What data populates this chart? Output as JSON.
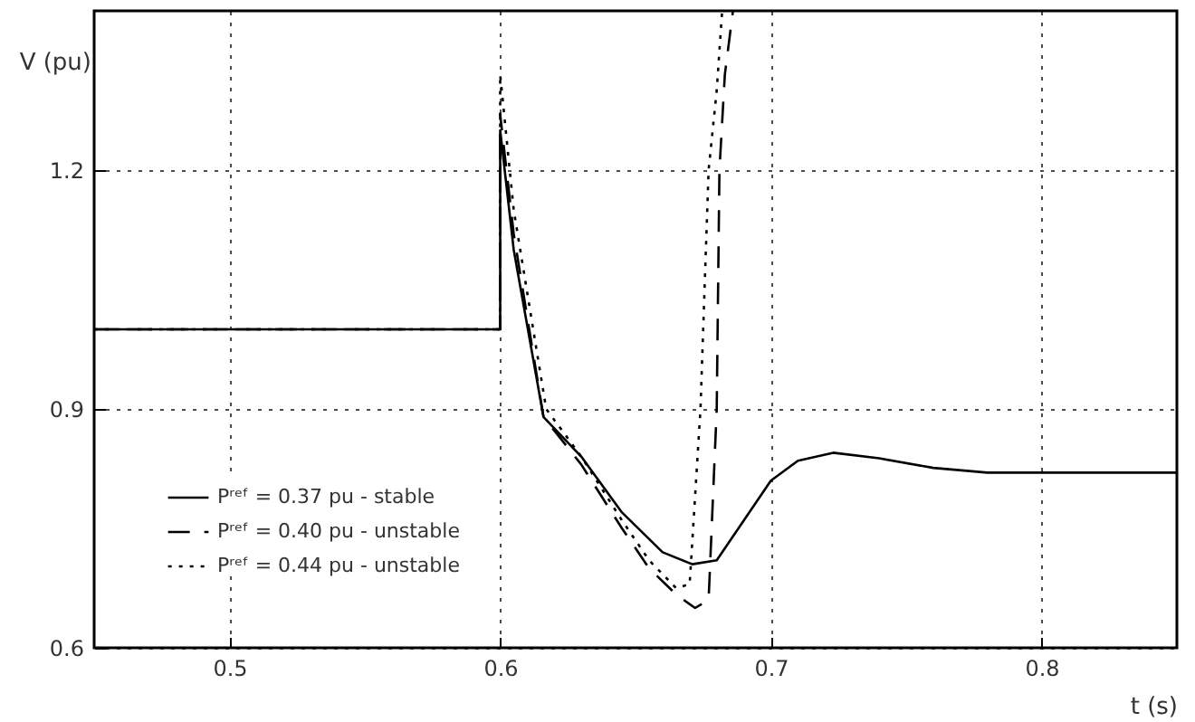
{
  "chart_data": {
    "type": "line",
    "xlabel": "t (s)",
    "ylabel": "V (pu)",
    "xlim": [
      0.45,
      0.85
    ],
    "ylim": [
      0.6,
      1.4
    ],
    "xticks": [
      0.5,
      0.6,
      0.7,
      0.8
    ],
    "yticks": [
      0.6,
      0.9,
      1.2
    ],
    "grid": true,
    "legend": "bottom left",
    "series": [
      {
        "name": "Pʳᵉᶠ = 0.37 pu - stable",
        "color": "#000000",
        "line_style": "solid",
        "x": [
          0.45,
          0.6,
          0.6,
          0.605,
          0.616,
          0.63,
          0.645,
          0.66,
          0.671,
          0.68,
          0.69,
          0.7,
          0.71,
          0.723,
          0.74,
          0.76,
          0.78,
          0.8,
          0.85
        ],
        "values": [
          1.0,
          1.0,
          1.25,
          1.1,
          0.89,
          0.84,
          0.77,
          0.72,
          0.705,
          0.71,
          0.76,
          0.81,
          0.835,
          0.845,
          0.838,
          0.826,
          0.82,
          0.82,
          0.82
        ]
      },
      {
        "name": "Pʳᵉᶠ = 0.40 pu - unstable",
        "color": "#000000",
        "line_style": "dashed",
        "x": [
          0.45,
          0.6,
          0.6,
          0.605,
          0.616,
          0.63,
          0.645,
          0.655,
          0.665,
          0.672,
          0.677,
          0.68,
          0.681,
          0.683,
          0.686
        ],
        "values": [
          1.0,
          1.0,
          1.27,
          1.12,
          0.89,
          0.83,
          0.75,
          0.7,
          0.667,
          0.65,
          0.66,
          0.9,
          1.2,
          1.32,
          1.4
        ]
      },
      {
        "name": "Pʳᵉᶠ = 0.44 pu - unstable",
        "color": "#000000",
        "line_style": "dotted",
        "x": [
          0.45,
          0.6,
          0.6,
          0.605,
          0.617,
          0.63,
          0.645,
          0.655,
          0.665,
          0.67,
          0.674,
          0.677,
          0.68,
          0.682
        ],
        "values": [
          1.0,
          1.0,
          1.32,
          1.15,
          0.9,
          0.84,
          0.76,
          0.71,
          0.675,
          0.68,
          0.9,
          1.2,
          1.3,
          1.4
        ]
      }
    ]
  }
}
